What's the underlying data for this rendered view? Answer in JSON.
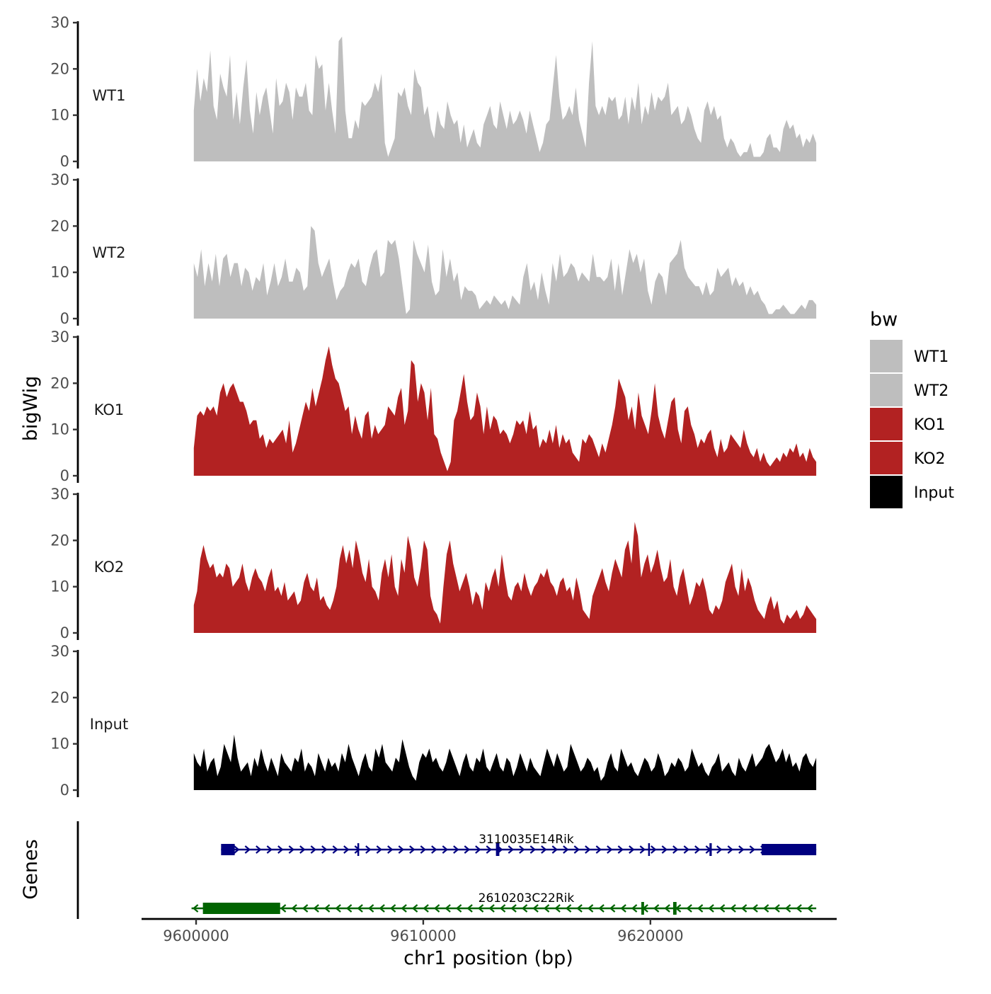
{
  "chart_data": {
    "type": "area",
    "ylabel": "bigWig",
    "xlabel": "chr1 position (bp)",
    "ylim": [
      0,
      30
    ],
    "yticks": [
      0,
      10,
      20,
      30
    ],
    "xlim": [
      9597600,
      9628200
    ],
    "xticks": [
      9600000,
      9610000,
      9620000
    ],
    "x_start": 9599900,
    "x_end": 9627300,
    "legend_title": "bw",
    "legend": [
      {
        "name": "WT1",
        "color": "#bebebe"
      },
      {
        "name": "WT2",
        "color": "#bebebe"
      },
      {
        "name": "KO1",
        "color": "#b22222"
      },
      {
        "name": "KO2",
        "color": "#b22222"
      },
      {
        "name": "Input",
        "color": "#000000"
      }
    ],
    "series": [
      {
        "name": "WT1",
        "color": "#bebebe",
        "values": [
          11,
          20,
          13,
          18,
          15,
          24,
          12,
          9,
          19,
          16,
          14,
          23,
          9,
          15,
          8,
          16,
          22,
          11,
          6,
          15,
          10,
          14,
          16,
          11,
          6,
          18,
          12,
          13,
          17,
          15,
          9,
          16,
          14,
          14,
          17,
          11,
          10,
          23,
          20,
          21,
          11,
          17,
          11,
          6,
          26,
          27,
          11,
          5,
          5,
          9,
          7,
          13,
          12,
          13,
          14,
          17,
          15,
          19,
          4,
          1,
          3,
          5,
          15,
          14,
          16,
          12,
          10,
          20,
          17,
          16,
          10,
          12,
          7,
          5,
          11,
          8,
          7,
          13,
          10,
          8,
          9,
          4,
          8,
          3,
          5,
          7,
          4,
          3,
          8,
          10,
          12,
          8,
          7,
          13,
          10,
          7,
          11,
          8,
          9,
          11,
          9,
          6,
          11,
          8,
          5,
          2,
          4,
          8,
          9,
          16,
          23,
          14,
          9,
          10,
          12,
          10,
          16,
          9,
          6,
          3,
          17,
          26,
          12,
          10,
          12,
          10,
          14,
          13,
          14,
          9,
          10,
          14,
          8,
          14,
          11,
          17,
          8,
          12,
          10,
          15,
          11,
          14,
          13,
          14,
          17,
          10,
          11,
          12,
          8,
          9,
          12,
          10,
          7,
          5,
          4,
          11,
          13,
          10,
          12,
          9,
          10,
          5,
          3,
          5,
          4,
          2,
          1,
          2,
          2,
          4,
          1,
          1,
          1,
          2,
          5,
          6,
          3,
          3,
          2,
          7,
          9,
          7,
          8,
          5,
          6,
          3,
          5,
          4,
          6,
          4
        ]
      },
      {
        "name": "WT2",
        "color": "#bebebe",
        "values": [
          12,
          9,
          15,
          7,
          12,
          8,
          14,
          7,
          13,
          14,
          9,
          12,
          12,
          7,
          11,
          10,
          6,
          9,
          8,
          12,
          5,
          8,
          12,
          7,
          9,
          13,
          8,
          8,
          11,
          10,
          6,
          7,
          20,
          19,
          12,
          9,
          11,
          13,
          8,
          4,
          6,
          7,
          10,
          12,
          11,
          13,
          8,
          7,
          11,
          14,
          15,
          9,
          10,
          17,
          16,
          17,
          13,
          7,
          1,
          2,
          17,
          14,
          12,
          10,
          16,
          8,
          5,
          6,
          15,
          9,
          13,
          8,
          10,
          4,
          7,
          6,
          6,
          5,
          2,
          3,
          4,
          3,
          5,
          4,
          3,
          4,
          2,
          5,
          4,
          3,
          9,
          12,
          6,
          8,
          4,
          10,
          6,
          3,
          12,
          8,
          14,
          9,
          10,
          12,
          11,
          8,
          10,
          9,
          8,
          14,
          9,
          9,
          8,
          9,
          13,
          6,
          12,
          5,
          10,
          15,
          12,
          14,
          10,
          13,
          6,
          3,
          8,
          10,
          9,
          5,
          12,
          13,
          14,
          17,
          11,
          9,
          8,
          7,
          7,
          5,
          8,
          5,
          6,
          11,
          9,
          10,
          11,
          7,
          9,
          7,
          8,
          5,
          7,
          5,
          6,
          4,
          3,
          1,
          1,
          2,
          2,
          3,
          2,
          1,
          1,
          2,
          3,
          2,
          4,
          4,
          3
        ]
      },
      {
        "name": "KO1",
        "color": "#b22222",
        "values": [
          6,
          13,
          14,
          13,
          15,
          14,
          15,
          13,
          18,
          20,
          17,
          19,
          20,
          18,
          16,
          16,
          14,
          11,
          12,
          12,
          8,
          9,
          6,
          8,
          7,
          8,
          9,
          10,
          7,
          12,
          5,
          7,
          10,
          13,
          16,
          14,
          19,
          15,
          18,
          21,
          25,
          28,
          24,
          21,
          20,
          17,
          14,
          15,
          9,
          13,
          10,
          8,
          13,
          14,
          8,
          11,
          9,
          10,
          11,
          15,
          14,
          13,
          17,
          19,
          11,
          14,
          25,
          24,
          16,
          20,
          18,
          12,
          19,
          9,
          8,
          5,
          3,
          1,
          3,
          12,
          14,
          18,
          22,
          16,
          12,
          13,
          18,
          15,
          9,
          15,
          10,
          13,
          12,
          9,
          10,
          9,
          7,
          9,
          12,
          11,
          12,
          9,
          14,
          10,
          11,
          6,
          8,
          7,
          10,
          7,
          11,
          6,
          9,
          7,
          8,
          5,
          4,
          3,
          8,
          7,
          9,
          8,
          6,
          4,
          7,
          5,
          8,
          11,
          15,
          21,
          19,
          17,
          12,
          15,
          10,
          18,
          13,
          11,
          9,
          14,
          20,
          13,
          10,
          8,
          12,
          16,
          17,
          10,
          7,
          14,
          15,
          11,
          9,
          6,
          8,
          7,
          9,
          10,
          6,
          4,
          8,
          5,
          6,
          9,
          8,
          7,
          6,
          10,
          7,
          5,
          4,
          6,
          3,
          5,
          3,
          2,
          3,
          4,
          3,
          5,
          4,
          6,
          5,
          7,
          4,
          5,
          3,
          6,
          4,
          3
        ]
      },
      {
        "name": "KO2",
        "color": "#b22222",
        "values": [
          6,
          9,
          16,
          19,
          16,
          14,
          15,
          12,
          13,
          12,
          15,
          14,
          10,
          11,
          12,
          15,
          11,
          9,
          12,
          14,
          12,
          11,
          9,
          12,
          14,
          9,
          10,
          8,
          11,
          7,
          8,
          9,
          6,
          7,
          11,
          13,
          10,
          9,
          12,
          7,
          8,
          6,
          5,
          7,
          10,
          16,
          19,
          15,
          18,
          14,
          20,
          17,
          13,
          11,
          16,
          10,
          9,
          7,
          13,
          16,
          12,
          17,
          10,
          8,
          16,
          13,
          21,
          18,
          12,
          10,
          14,
          20,
          18,
          8,
          5,
          4,
          2,
          10,
          17,
          20,
          15,
          12,
          9,
          11,
          13,
          10,
          6,
          9,
          8,
          5,
          11,
          9,
          12,
          14,
          10,
          17,
          12,
          8,
          7,
          10,
          11,
          9,
          13,
          10,
          8,
          10,
          11,
          13,
          12,
          14,
          11,
          10,
          8,
          11,
          12,
          9,
          10,
          7,
          12,
          9,
          5,
          4,
          3,
          8,
          10,
          12,
          14,
          11,
          9,
          13,
          16,
          14,
          12,
          18,
          20,
          15,
          24,
          21,
          12,
          15,
          17,
          13,
          15,
          18,
          14,
          11,
          12,
          16,
          10,
          8,
          12,
          14,
          10,
          6,
          8,
          11,
          10,
          12,
          9,
          5,
          4,
          6,
          5,
          7,
          11,
          13,
          15,
          10,
          8,
          14,
          9,
          12,
          10,
          7,
          5,
          4,
          3,
          6,
          8,
          5,
          7,
          3,
          2,
          4,
          3,
          4,
          5,
          3,
          4,
          6,
          5,
          4,
          3
        ]
      },
      {
        "name": "Input",
        "color": "#000000",
        "values": [
          8,
          6,
          5,
          9,
          4,
          6,
          7,
          3,
          5,
          10,
          8,
          6,
          12,
          7,
          4,
          5,
          6,
          3,
          7,
          5,
          9,
          6,
          4,
          7,
          5,
          3,
          8,
          6,
          5,
          4,
          7,
          6,
          9,
          4,
          6,
          5,
          3,
          8,
          6,
          4,
          7,
          5,
          6,
          4,
          8,
          6,
          10,
          7,
          5,
          3,
          6,
          8,
          5,
          4,
          9,
          7,
          10,
          6,
          5,
          4,
          7,
          6,
          11,
          8,
          5,
          3,
          2,
          6,
          8,
          7,
          9,
          6,
          7,
          5,
          4,
          6,
          9,
          7,
          5,
          3,
          6,
          8,
          5,
          4,
          7,
          6,
          9,
          5,
          4,
          6,
          8,
          5,
          4,
          7,
          6,
          3,
          5,
          8,
          6,
          4,
          7,
          5,
          4,
          3,
          6,
          9,
          7,
          5,
          8,
          6,
          4,
          5,
          10,
          8,
          6,
          4,
          5,
          7,
          6,
          4,
          5,
          2,
          3,
          6,
          8,
          5,
          4,
          9,
          7,
          5,
          6,
          4,
          3,
          5,
          7,
          6,
          4,
          5,
          8,
          6,
          3,
          4,
          6,
          5,
          7,
          6,
          4,
          5,
          9,
          7,
          5,
          6,
          4,
          3,
          5,
          6,
          8,
          4,
          5,
          6,
          4,
          3,
          7,
          5,
          4,
          6,
          8,
          5,
          6,
          7,
          9,
          10,
          8,
          6,
          7,
          9,
          6,
          8,
          5,
          6,
          4,
          7,
          8,
          6,
          5,
          7
        ]
      }
    ],
    "genes": [
      {
        "name": "3110035E14Rik",
        "strand": "+",
        "color": "#000080",
        "start": 9601100,
        "end": 9627300,
        "exons": [
          [
            9601100,
            9601700
          ],
          [
            9607100,
            9607170
          ],
          [
            9613200,
            9613350
          ],
          [
            9619900,
            9619950
          ],
          [
            9622600,
            9622700
          ],
          [
            9624900,
            9627300
          ]
        ]
      },
      {
        "name": "2610203C22Rik",
        "strand": "-",
        "color": "#006400",
        "start": 9599800,
        "end": 9627300,
        "exons": [
          [
            9600300,
            9603700
          ],
          [
            9619600,
            9619720
          ],
          [
            9621000,
            9621150
          ]
        ]
      }
    ],
    "gene_panel_label": "Genes"
  }
}
